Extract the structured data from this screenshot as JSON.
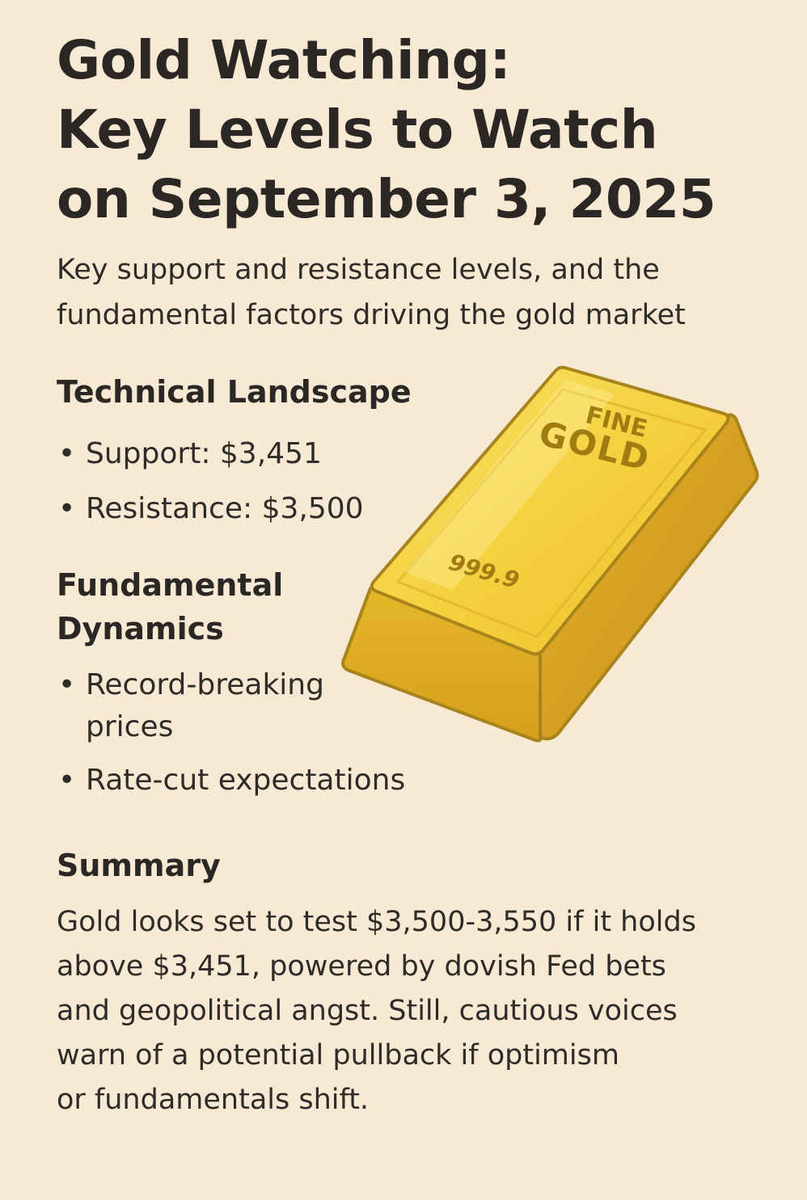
{
  "header": {
    "title_lines": [
      "Gold Watching:",
      "Key Levels to Watch",
      "on September 3, 2025"
    ],
    "subtitle_lines": [
      "Key support and resistance levels, and the",
      "fundamental factors driving the gold market"
    ]
  },
  "technical": {
    "heading": "Technical Landscape",
    "items": [
      "Support: $3,451",
      "Resistance: $3,500"
    ]
  },
  "fundamental": {
    "heading_lines": [
      "Fundamental",
      "Dynamics"
    ],
    "items": [
      {
        "lines": [
          "Record-breaking",
          "prices"
        ]
      },
      {
        "lines": [
          "Rate-cut expectations"
        ]
      }
    ]
  },
  "summary": {
    "heading": "Summary",
    "lines": [
      "Gold looks set to test $3,500-3,550 if it holds",
      "above $3,451, powered by dovish Fed bets",
      "and geopolitical angst. Still, cautious voices",
      "warn of a potential pullback if optimism",
      "or fundamentals shift."
    ]
  },
  "gold_bar": {
    "stamp_top": "FINE",
    "stamp_main": "GOLD",
    "stamp_purity": "999.9",
    "colors": {
      "top_face": "#f5d13e",
      "side_face": "#e0ae24",
      "outline": "#a8841d",
      "stamp_text": "#9c7a14",
      "background": "#f7e9d3"
    }
  },
  "bullet_glyph": "•"
}
